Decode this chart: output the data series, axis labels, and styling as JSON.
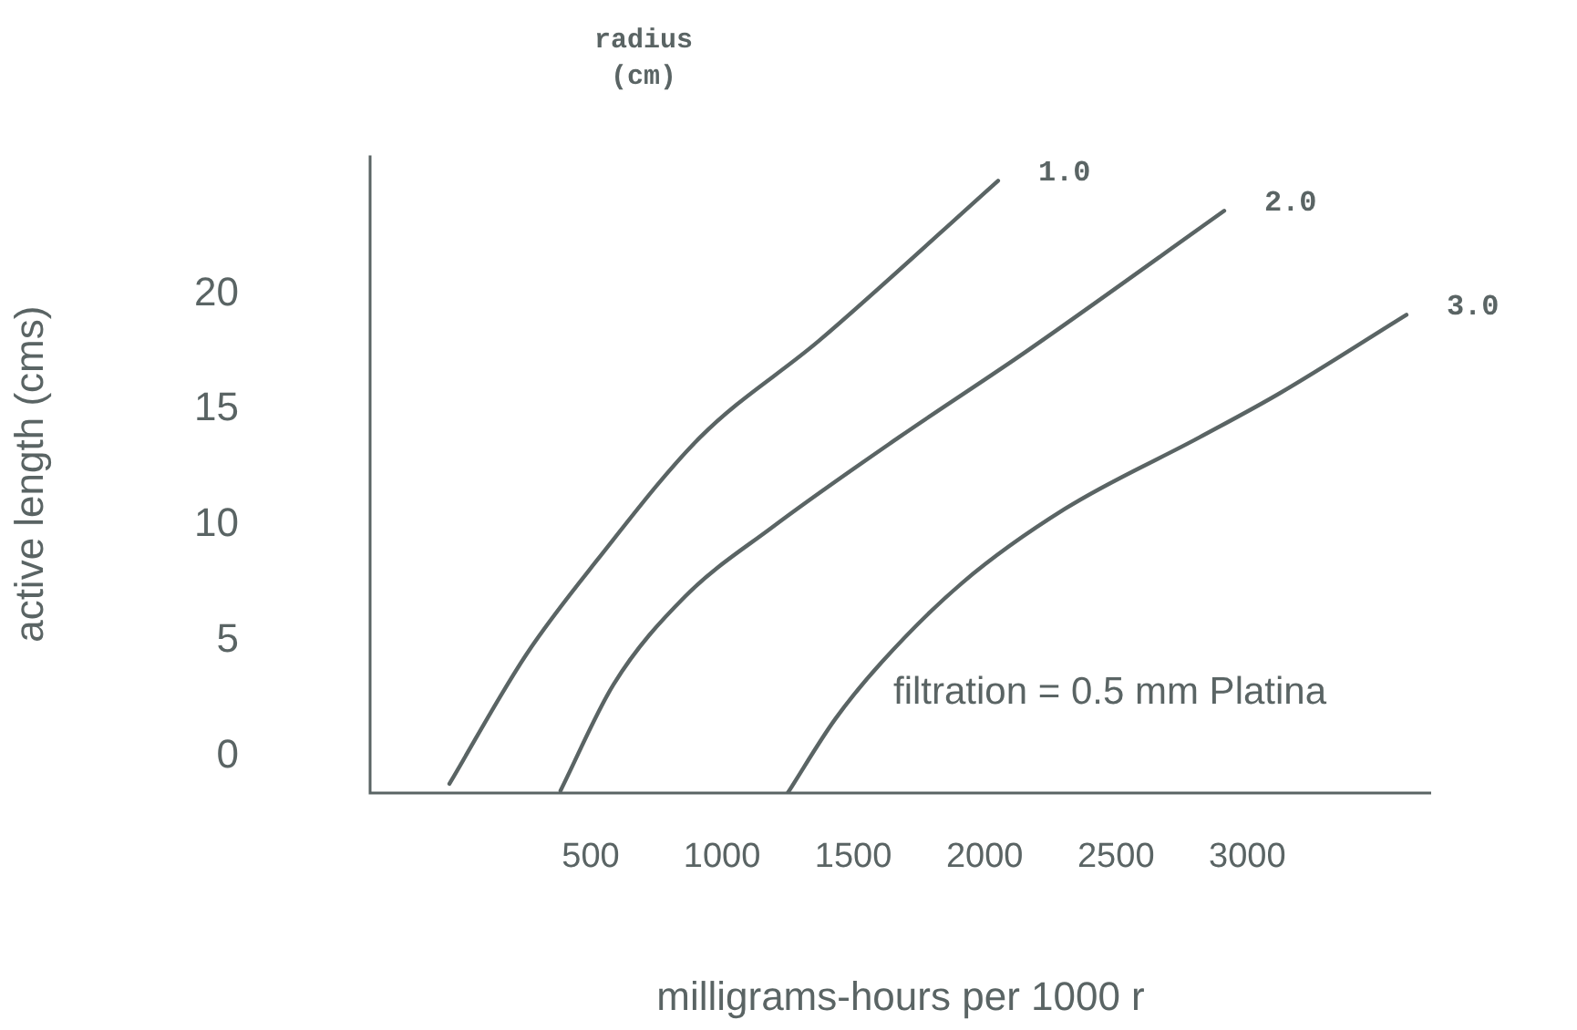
{
  "chart_data": {
    "type": "line",
    "xlabel": "milligrams-hours per 1000 r",
    "ylabel": "active length (cms)",
    "legend_title": "radius (cm)",
    "xlim": [
      -340,
      3700
    ],
    "ylim": [
      -1.6,
      26
    ],
    "xticks": [
      500,
      1000,
      1500,
      2000,
      2500,
      3000
    ],
    "yticks": [
      0,
      5,
      10,
      15,
      20
    ],
    "grid": false,
    "marker": "none",
    "line_style": "solid",
    "annotations": [
      "filtration = 0.5 mm Platina"
    ],
    "series": [
      {
        "name": "1.0",
        "color": "#5a6464",
        "x": [
          -38,
          255,
          526,
          917,
          1372,
          2051
        ],
        "values": [
          -1.2,
          4.4,
          8.5,
          13.8,
          18.0,
          24.9
        ]
      },
      {
        "name": "2.0",
        "color": "#5a6464",
        "x": [
          385,
          587,
          859,
          1191,
          1674,
          2157,
          2912
        ],
        "values": [
          -1.5,
          3.1,
          6.9,
          9.9,
          13.8,
          17.5,
          23.6
        ]
      },
      {
        "name": "3.0",
        "color": "#5a6464",
        "x": [
          1250,
          1431,
          1611,
          1915,
          2306,
          2819,
          3123,
          3606
        ],
        "values": [
          -1.6,
          1.6,
          4.1,
          7.5,
          10.7,
          13.8,
          15.7,
          19.1
        ]
      }
    ]
  }
}
